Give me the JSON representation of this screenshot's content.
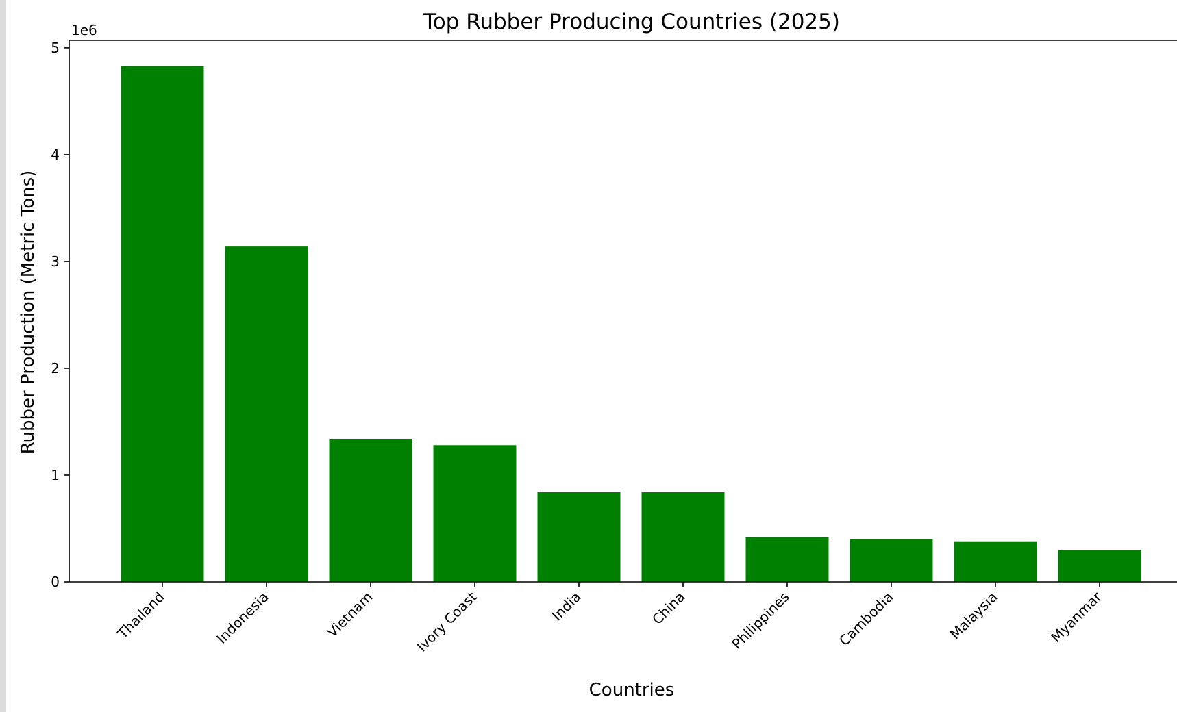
{
  "chart_data": {
    "type": "bar",
    "title": "Top Rubber Producing Countries (2025)",
    "xlabel": "Countries",
    "ylabel": "Rubber Production (Metric Tons)",
    "y_offset_label": "1e6",
    "categories": [
      "Thailand",
      "Indonesia",
      "Vietnam",
      "Ivory Coast",
      "India",
      "China",
      "Philippines",
      "Cambodia",
      "Malaysia",
      "Myanmar"
    ],
    "values": [
      4830000,
      3140000,
      1340000,
      1280000,
      840000,
      840000,
      420000,
      400000,
      380000,
      300000
    ],
    "ylim": [
      0,
      5070000
    ],
    "yticks": [
      0,
      1000000,
      2000000,
      3000000,
      4000000,
      5000000
    ],
    "ytick_labels": [
      "0",
      "1",
      "2",
      "3",
      "4",
      "5"
    ],
    "bar_color": "#008000",
    "grid": false,
    "legend": "none"
  }
}
